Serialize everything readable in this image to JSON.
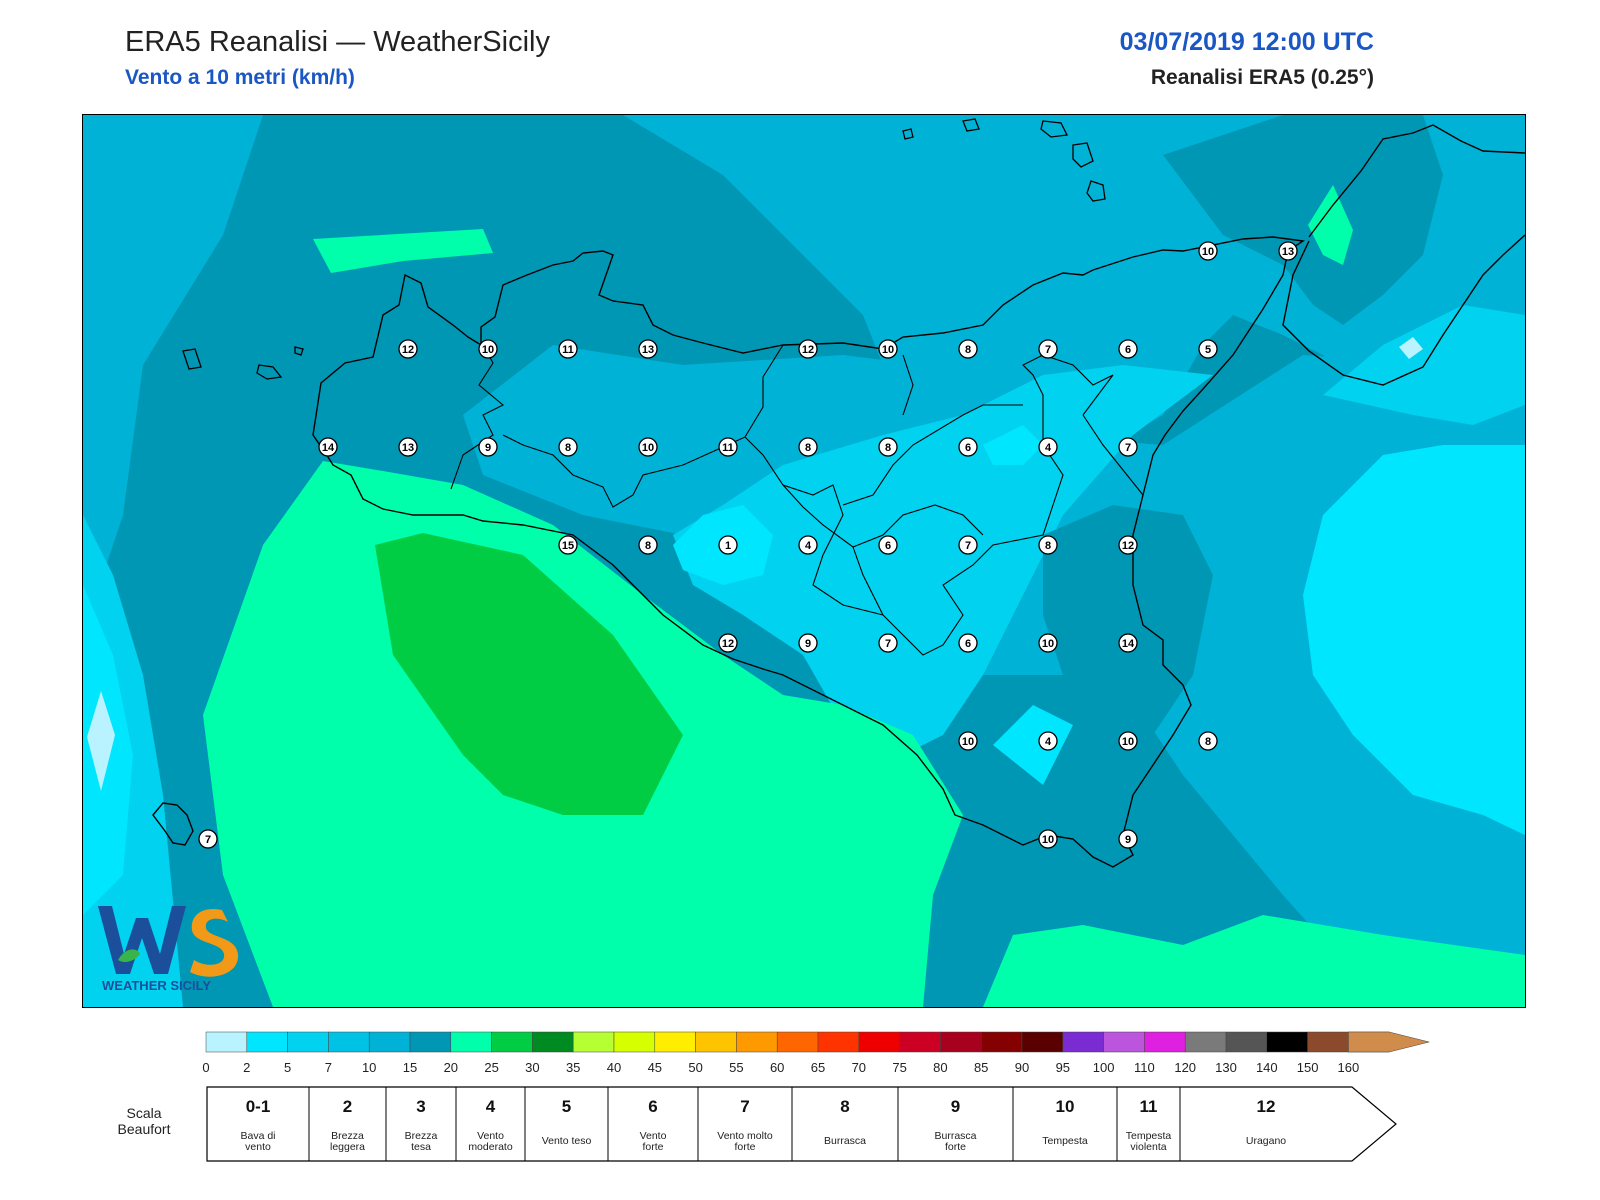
{
  "header": {
    "title": "ERA5 Reanalisi — WeatherSicily",
    "subtitle": "Vento a 10 metri (km/h)",
    "datetime": "03/07/2019 12:00 UTC",
    "dataset": "Reanalisi ERA5 (0.25°)"
  },
  "palette": {
    "ocean_dark": "#0097b5",
    "ocean_mid": "#00b3d6",
    "light_cyan": "#00d2ef",
    "bright_cyan": "#00e6ff",
    "pale_cyan": "#b8f3ff",
    "aqua_green": "#00ffaa",
    "green": "#00cc44"
  },
  "stations": [
    {
      "v": "12",
      "lon": 12.65,
      "lat": 38.1
    },
    {
      "v": "10",
      "lon": 13.05,
      "lat": 38.1
    },
    {
      "v": "11",
      "lon": 13.45,
      "lat": 38.1
    },
    {
      "v": "13",
      "lon": 13.85,
      "lat": 38.1
    },
    {
      "v": "12",
      "lon": 14.65,
      "lat": 38.1
    },
    {
      "v": "10",
      "lon": 15.05,
      "lat": 38.1
    },
    {
      "v": "8",
      "lon": 15.45,
      "lat": 38.1
    },
    {
      "v": "7",
      "lon": 15.85,
      "lat": 38.1
    },
    {
      "v": "6",
      "lon": 16.25,
      "lat": 38.1
    },
    {
      "v": "5",
      "lon": 16.65,
      "lat": 38.1
    },
    {
      "v": "10",
      "lon": 16.65,
      "lat": 38.6
    },
    {
      "v": "13",
      "lon": 17.05,
      "lat": 38.6
    },
    {
      "v": "14",
      "lon": 12.25,
      "lat": 37.6
    },
    {
      "v": "13",
      "lon": 12.65,
      "lat": 37.6
    },
    {
      "v": "9",
      "lon": 13.05,
      "lat": 37.6
    },
    {
      "v": "8",
      "lon": 13.45,
      "lat": 37.6
    },
    {
      "v": "10",
      "lon": 13.85,
      "lat": 37.6
    },
    {
      "v": "11",
      "lon": 14.25,
      "lat": 37.6
    },
    {
      "v": "8",
      "lon": 14.65,
      "lat": 37.6
    },
    {
      "v": "8",
      "lon": 15.05,
      "lat": 37.6
    },
    {
      "v": "6",
      "lon": 15.45,
      "lat": 37.6
    },
    {
      "v": "4",
      "lon": 15.85,
      "lat": 37.6
    },
    {
      "v": "7",
      "lon": 16.25,
      "lat": 37.6
    },
    {
      "v": "15",
      "lon": 13.45,
      "lat": 37.1
    },
    {
      "v": "8",
      "lon": 13.85,
      "lat": 37.1
    },
    {
      "v": "1",
      "lon": 14.25,
      "lat": 37.1
    },
    {
      "v": "4",
      "lon": 14.65,
      "lat": 37.1
    },
    {
      "v": "6",
      "lon": 15.05,
      "lat": 37.1
    },
    {
      "v": "7",
      "lon": 15.45,
      "lat": 37.1
    },
    {
      "v": "8",
      "lon": 15.85,
      "lat": 37.1
    },
    {
      "v": "12",
      "lon": 16.25,
      "lat": 37.1
    },
    {
      "v": "12",
      "lon": 14.25,
      "lat": 36.6
    },
    {
      "v": "9",
      "lon": 14.65,
      "lat": 36.6
    },
    {
      "v": "7",
      "lon": 15.05,
      "lat": 36.6
    },
    {
      "v": "6",
      "lon": 15.45,
      "lat": 36.6
    },
    {
      "v": "10",
      "lon": 15.85,
      "lat": 36.6
    },
    {
      "v": "14",
      "lon": 16.25,
      "lat": 36.6
    },
    {
      "v": "10",
      "lon": 15.45,
      "lat": 36.1
    },
    {
      "v": "4",
      "lon": 15.85,
      "lat": 36.1
    },
    {
      "v": "10",
      "lon": 16.25,
      "lat": 36.1
    },
    {
      "v": "8",
      "lon": 16.65,
      "lat": 36.1
    },
    {
      "v": "10",
      "lon": 15.85,
      "lat": 35.6
    },
    {
      "v": "9",
      "lon": 16.25,
      "lat": 35.6
    },
    {
      "v": "7",
      "lon": 11.65,
      "lat": 35.6
    }
  ],
  "colorbar": {
    "ticks": [
      "0",
      "2",
      "5",
      "7",
      "10",
      "15",
      "20",
      "25",
      "30",
      "35",
      "40",
      "45",
      "50",
      "55",
      "60",
      "65",
      "70",
      "75",
      "80",
      "85",
      "90",
      "95",
      "100",
      "110",
      "120",
      "130",
      "140",
      "150",
      "160"
    ],
    "colors": [
      "#b8f3ff",
      "#00e6ff",
      "#00d2ef",
      "#00c2e4",
      "#00b3d6",
      "#0097b5",
      "#00ffaa",
      "#00cc44",
      "#008a22",
      "#b6ff33",
      "#d6ff00",
      "#ffee00",
      "#ffc400",
      "#ff9900",
      "#ff6600",
      "#ff3300",
      "#ee0000",
      "#cc0022",
      "#a8001f",
      "#850000",
      "#5a0000",
      "#7a2bd1",
      "#bb55dd",
      "#e020e0",
      "#7a7a7a",
      "#555555",
      "#000000",
      "#8b4a2b",
      "#c98247",
      "#d08c4a"
    ]
  },
  "beaufort": {
    "title_line1": "Scala",
    "title_line2": "Beaufort",
    "classes": [
      {
        "n": "0-1",
        "l1": "Bava di",
        "l2": "vento"
      },
      {
        "n": "2",
        "l1": "Brezza",
        "l2": "leggera"
      },
      {
        "n": "3",
        "l1": "Brezza",
        "l2": "tesa"
      },
      {
        "n": "4",
        "l1": "Vento",
        "l2": "moderato"
      },
      {
        "n": "5",
        "l1": "Vento teso",
        "l2": ""
      },
      {
        "n": "6",
        "l1": "Vento",
        "l2": "forte"
      },
      {
        "n": "7",
        "l1": "Vento molto",
        "l2": "forte"
      },
      {
        "n": "8",
        "l1": "Burrasca",
        "l2": ""
      },
      {
        "n": "9",
        "l1": "Burrasca",
        "l2": "forte"
      },
      {
        "n": "10",
        "l1": "Tempesta",
        "l2": ""
      },
      {
        "n": "11",
        "l1": "Tempesta",
        "l2": "violenta"
      },
      {
        "n": "12",
        "l1": "Uragano",
        "l2": ""
      }
    ]
  },
  "logo": {
    "text": "WEATHER SICILY"
  }
}
